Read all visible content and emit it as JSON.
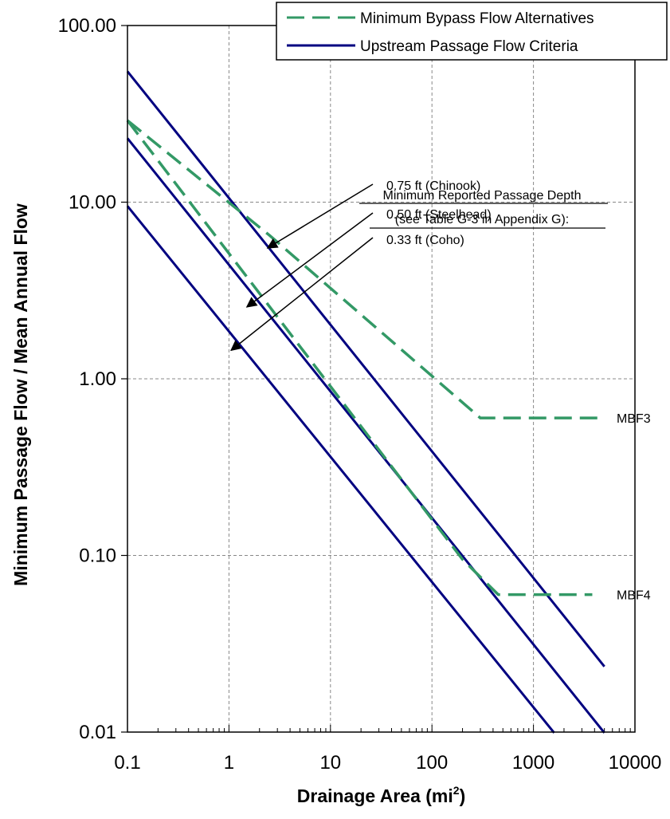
{
  "chart_data": {
    "type": "line",
    "xlabel": "Drainage Area (mi",
    "xlabel_sup": "2",
    "xlabel_end": ")",
    "ylabel": "Minimum Passage Flow / Mean Annual Flow",
    "x_scale": "log",
    "y_scale": "log",
    "xlim": [
      0.1,
      10000
    ],
    "ylim": [
      0.01,
      100
    ],
    "x_tick_labels": [
      "0.1",
      "1",
      "10",
      "100",
      "1000",
      "10000"
    ],
    "x_tick_values": [
      0.1,
      1,
      10,
      100,
      1000,
      10000
    ],
    "y_tick_labels": [
      "0.01",
      "0.10",
      "1.00",
      "10.00",
      "100.00"
    ],
    "y_tick_values": [
      0.01,
      0.1,
      1,
      10,
      100
    ],
    "grid": true,
    "legend_position": "top-right",
    "legend": [
      {
        "label": "Minimum Bypass Flow Alternatives",
        "color": "#339966",
        "style": "dashed"
      },
      {
        "label": "Upstream Passage Flow Criteria",
        "color": "#000080",
        "style": "solid"
      }
    ],
    "series": [
      {
        "group": "Upstream Passage Flow Criteria",
        "color": "#000080",
        "style": "solid",
        "points": [
          [
            0.1,
            55
          ],
          [
            5000,
            0.0235
          ]
        ]
      },
      {
        "group": "Upstream Passage Flow Criteria",
        "color": "#000080",
        "style": "solid",
        "points": [
          [
            0.1,
            23
          ],
          [
            5000,
            0.0099
          ]
        ]
      },
      {
        "group": "Upstream Passage Flow Criteria",
        "color": "#000080",
        "style": "solid",
        "points": [
          [
            0.1,
            9.5
          ],
          [
            1600,
            0.0099
          ]
        ]
      },
      {
        "group": "Minimum Bypass Flow Alternatives",
        "label": "MBF3",
        "color": "#339966",
        "style": "dashed",
        "points": [
          [
            0.1,
            29
          ],
          [
            2.5,
            6.5
          ],
          [
            300,
            0.6
          ],
          [
            5000,
            0.6
          ]
        ]
      },
      {
        "group": "Minimum Bypass Flow Alternatives",
        "label": "MBF4",
        "color": "#339966",
        "style": "dashed",
        "points": [
          [
            0.1,
            29
          ],
          [
            200,
            0.095
          ],
          [
            450,
            0.06
          ],
          [
            3800,
            0.06
          ]
        ]
      }
    ],
    "annotations": {
      "header_line1": "Minimum Reported Passage Depth",
      "header_line2": "(see Table G-3 in Appendix G):",
      "items": [
        {
          "text": "0.75 ft (Chinook)",
          "arrow_to": [
            2.4,
            5.5
          ]
        },
        {
          "text": "0.50 ft (Steelhead)",
          "arrow_to": [
            1.5,
            2.55
          ]
        },
        {
          "text": "0.33 ft (Coho)",
          "arrow_to": [
            1.05,
            1.45
          ]
        }
      ]
    }
  }
}
